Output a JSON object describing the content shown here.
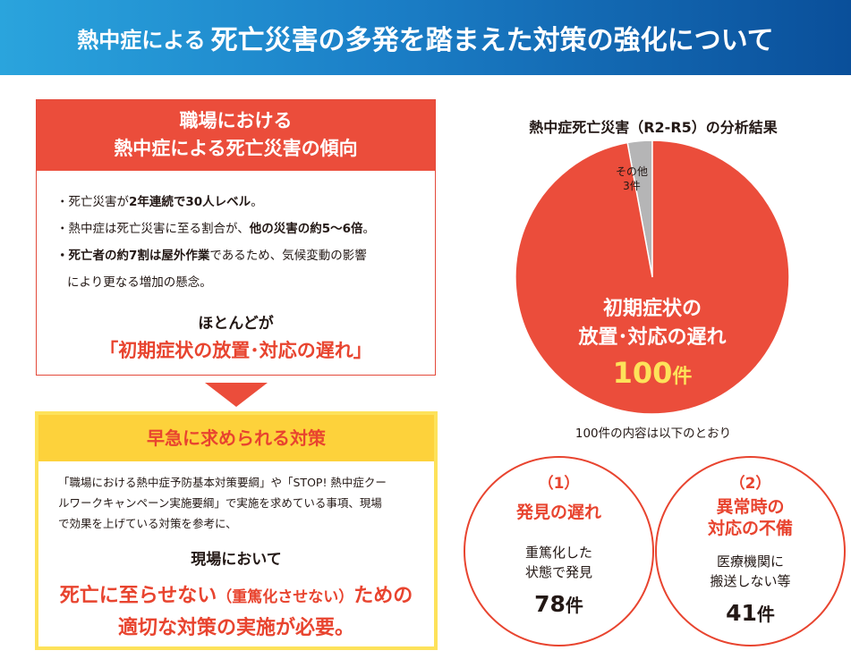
{
  "header": {
    "title_small": "熱中症による",
    "title_large": "死亡災害の多発を踏まえた対策の強化について"
  },
  "trend_card": {
    "title_line1": "職場における",
    "title_line2": "熱中症による死亡災害の傾向",
    "bullet1_pre": "・死亡災害が",
    "bullet1_bold": "2年連続で30人レベル",
    "bullet1_post": "。",
    "bullet2_pre": "・熱中症は死亡災害に至る割合が、",
    "bullet2_bold": "他の災害の約5～6倍",
    "bullet2_post": "。",
    "bullet3_bold": "・死亡者の約7割は屋外作業",
    "bullet3_post": "であるため、気候変動の影響",
    "bullet3_cont": "により更なる増加の懸念。",
    "mostly": "ほとんどが",
    "delay": "「初期症状の放置･対応の遅れ」"
  },
  "measures_card": {
    "title": "早急に求められる対策",
    "body_line1": "「職場における熱中症予防基本対策要綱」や「STOP! 熱中症クー",
    "body_line2": "ルワークキャンペーン実施要綱」で実施を求めている事項、現場",
    "body_line3": "で効果を上げている対策を参考に、",
    "genba": "現場において",
    "death_pre": "死亡に至らせない",
    "death_paren": "（重篤化させない）",
    "death_post": "ための",
    "conclusion": "適切な対策の実施が必要。"
  },
  "analysis": {
    "title": "熱中症死亡災害（R2-R5）の分析結果",
    "note": "100件の内容は以下のとおり"
  },
  "chart_data": {
    "type": "pie",
    "title": "熱中症死亡災害（R2-R5）の分析結果",
    "slices": [
      {
        "label_line1": "初期症状の",
        "label_line2": "放置･対応の遅れ",
        "value": 100,
        "count_num": "100",
        "count_unit": "件",
        "color": "#eb4d3b"
      },
      {
        "label_line1": "その他",
        "label_line2": "3件",
        "value": 3,
        "color": "#b5b5b6"
      }
    ]
  },
  "breakdown": [
    {
      "number": "（1）",
      "title_line1": "発見の遅れ",
      "title_line2": "",
      "desc_line1": "重篤化した",
      "desc_line2": "状態で発見",
      "count_num": "78",
      "count_unit": "件"
    },
    {
      "number": "（2）",
      "title_line1": "異常時の",
      "title_line2": "対応の不備",
      "desc_line1": "医療機関に",
      "desc_line2": "搬送しない等",
      "count_num": "41",
      "count_unit": "件"
    }
  ],
  "colors": {
    "accent_red": "#e8442f",
    "yellow": "#fde25a",
    "banner_blue": "#1b7fc7"
  }
}
